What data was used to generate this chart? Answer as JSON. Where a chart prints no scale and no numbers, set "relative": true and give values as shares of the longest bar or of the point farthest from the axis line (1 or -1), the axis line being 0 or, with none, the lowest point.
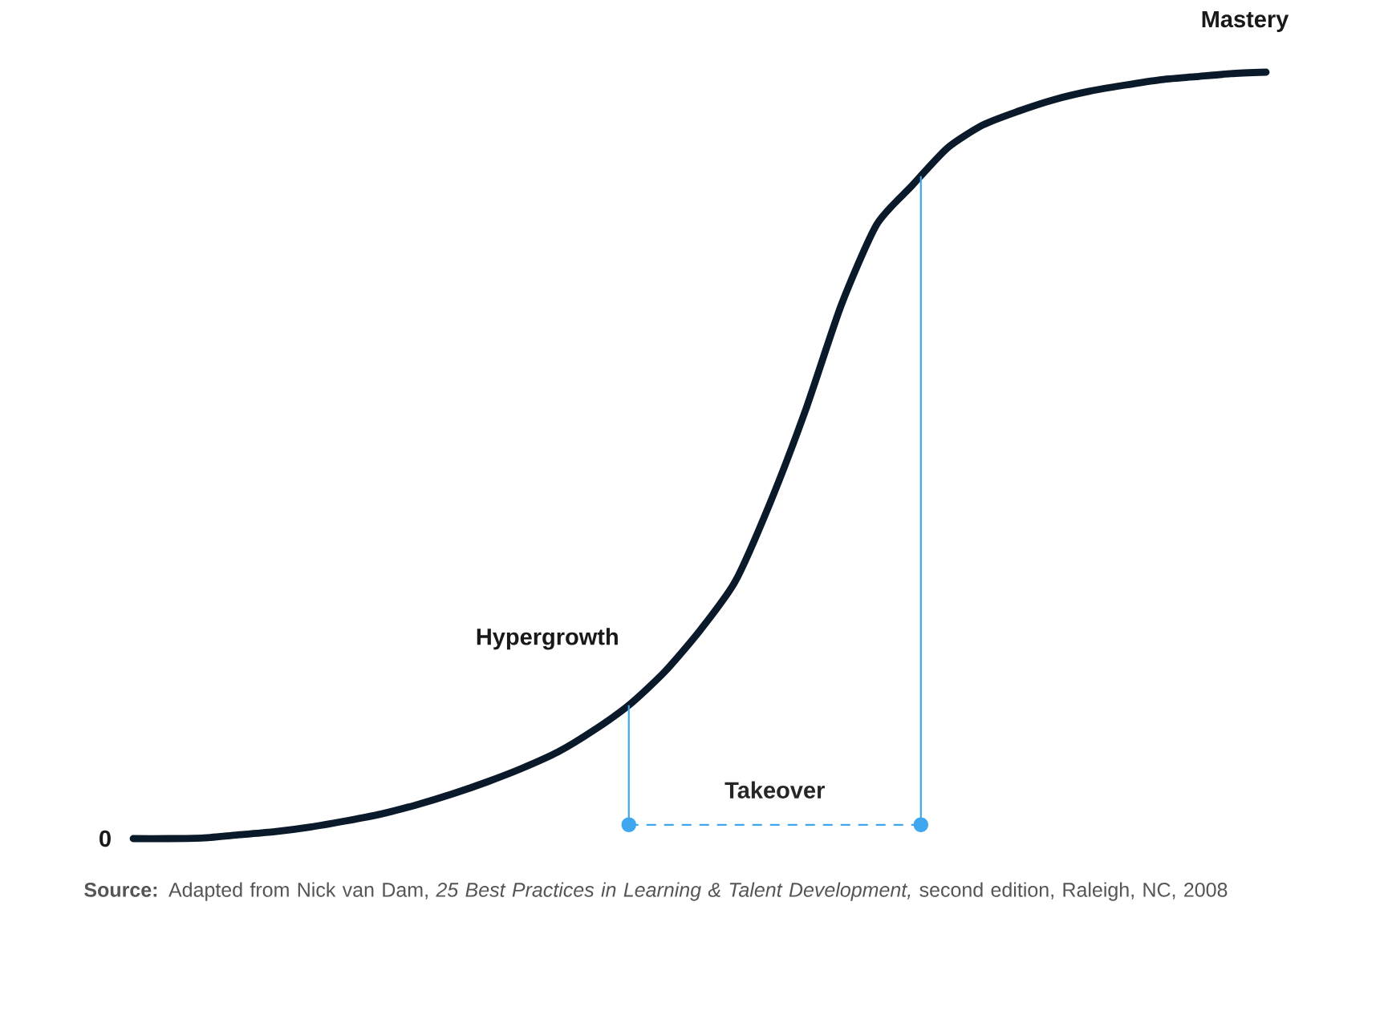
{
  "chart_data": {
    "type": "line",
    "relative": true,
    "categories": [
      null,
      null,
      null,
      null,
      null,
      null,
      null,
      null,
      null,
      null,
      null,
      null,
      null,
      null,
      null,
      null,
      null,
      null,
      null,
      null,
      null,
      null,
      null,
      null,
      null,
      null,
      null,
      null,
      null,
      null,
      null,
      null,
      null
    ],
    "series": [
      {
        "color": "#0b1a2b",
        "values": [
          0,
          0,
          0.001,
          0.005,
          0.009,
          0.015,
          0.023,
          0.032,
          0.044,
          0.058,
          0.074,
          0.092,
          0.113,
          0.141,
          0.174,
          0.217,
          0.271,
          0.335,
          0.439,
          0.56,
          0.696,
          0.801,
          0.852,
          0.901,
          0.931,
          0.949,
          0.964,
          0.975,
          0.983,
          0.99,
          0.994,
          0.998,
          1
        ]
      }
    ],
    "line_style": "solid",
    "annotations": [
      "0",
      "Hypergrowth",
      "Mastery",
      "Takeover",
      "**Source:** Adapted from Nick van Dam, *25 Best Practices in Learning & Talent Development,* second edition, Raleigh, NC, 2008"
    ]
  }
}
